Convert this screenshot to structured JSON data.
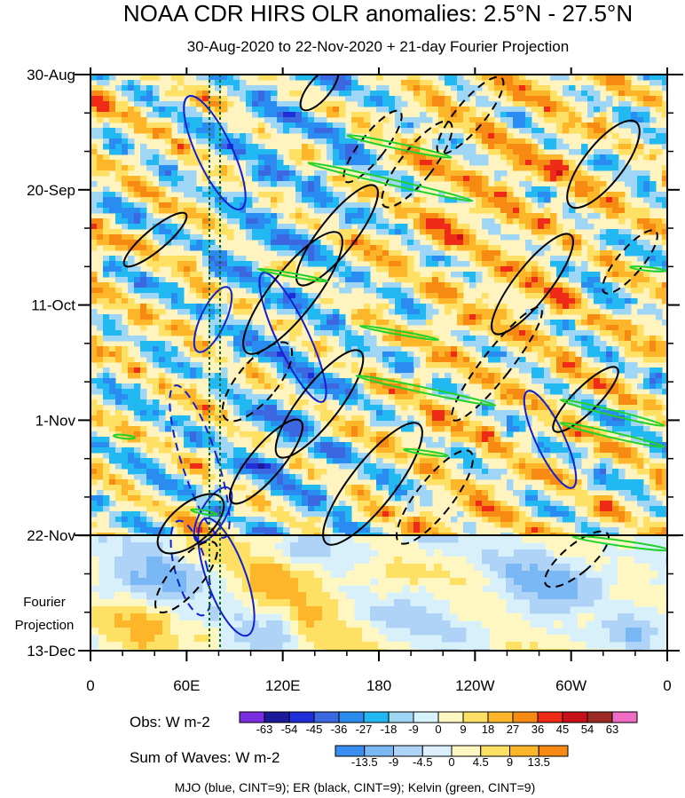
{
  "chart_data": {
    "type": "heatmap",
    "title": "NOAA CDR HIRS OLR anomalies: 2.5°N - 27.5°N",
    "subtitle": "30-Aug-2020 to 22-Nov-2020 + 21-day Fourier Projection",
    "x_ticks": [
      "0",
      "60E",
      "120E",
      "180",
      "120W",
      "60W",
      "0"
    ],
    "x_tick_lon": [
      0,
      60,
      120,
      180,
      240,
      300,
      360
    ],
    "y_ticks": [
      "30-Aug",
      "20-Sep",
      "11-Oct",
      "1-Nov",
      "22-Nov",
      "13-Dec"
    ],
    "y_tick_day": [
      0,
      21,
      42,
      63,
      84,
      105
    ],
    "projection_label": [
      "Fourier",
      "Projection"
    ],
    "obs_colorbar": {
      "label": "Obs: W m-2",
      "levels": [
        "-63",
        "-54",
        "-45",
        "-36",
        "-27",
        "-18",
        "-9",
        "0",
        "9",
        "18",
        "27",
        "36",
        "45",
        "54",
        "63"
      ],
      "colors": [
        "#7a2ee0",
        "#1d1a9a",
        "#1f2ed6",
        "#3b67e0",
        "#2a8cf0",
        "#22b8f2",
        "#9fd6f6",
        "#d6f2fb",
        "#fff7c2",
        "#fde064",
        "#fdb52a",
        "#f78a12",
        "#ef2a16",
        "#c8101a",
        "#9a2a22",
        "#ef6dc2"
      ]
    },
    "waves_colorbar": {
      "label": "Sum of Waves: W m-2",
      "levels": [
        "-13.5",
        "-9",
        "-4.5",
        "0",
        "4.5",
        "9",
        "13.5"
      ],
      "colors": [
        "#3a8ef0",
        "#7ab8f5",
        "#aed3f7",
        "#dceffc",
        "#fff7c2",
        "#fde064",
        "#fdb52a",
        "#f78a12"
      ]
    },
    "footnote": "MJO (blue, CINT=9); ER (black, CINT=9); Kelvin (green, CINT=9)"
  }
}
